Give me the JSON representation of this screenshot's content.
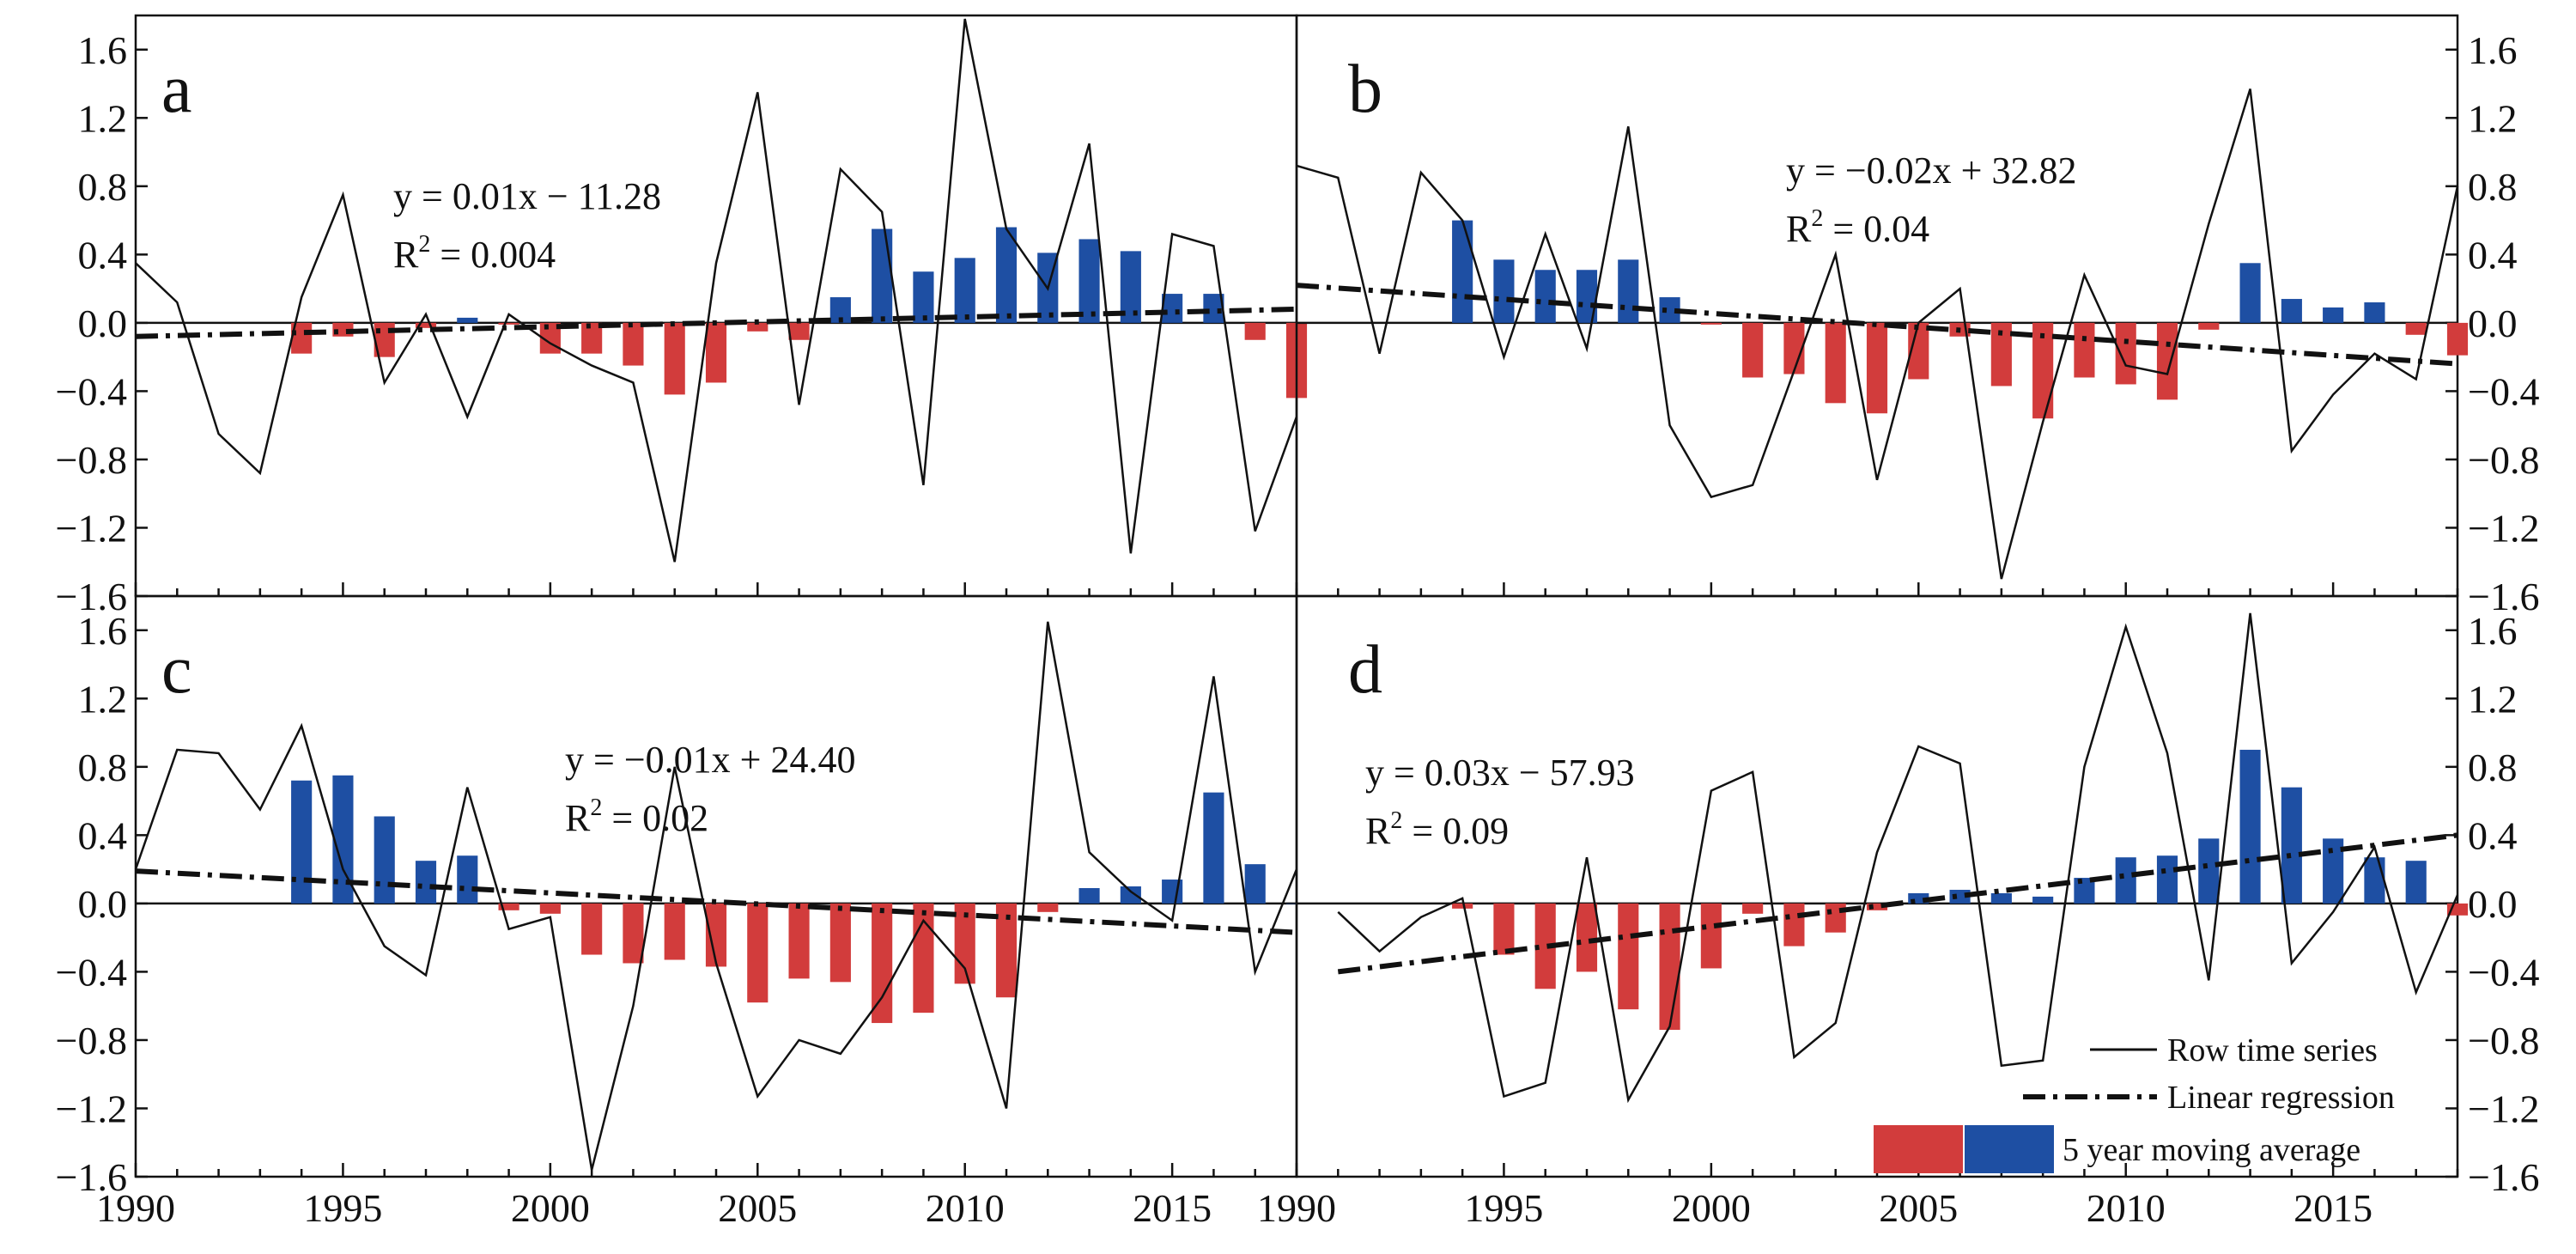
{
  "figure": {
    "legend": {
      "raw": "Row time series",
      "trend": "Linear regression",
      "moving_avg": "5 year moving average",
      "neg_color": "#d23c3c",
      "pos_color": "#1e4fa3"
    }
  },
  "chart_data": [
    {
      "type": "bar+line",
      "panel": "a",
      "title": "a",
      "xlim": [
        1990,
        2018
      ],
      "ylim": [
        -1.6,
        1.8
      ],
      "x_ticks": [
        "1990",
        "1995",
        "2000",
        "2005",
        "2010",
        "2015"
      ],
      "y_ticks": [
        "-1.6",
        "-1.2",
        "-0.8",
        "-0.4",
        "0.0",
        "0.4",
        "0.8",
        "1.2",
        "1.6"
      ],
      "equation": "y = 0.01x − 11.28",
      "r2_label": "R",
      "r2_sup": "2",
      "r2_value": " = 0.004",
      "raw_series": {
        "name": "Row time series",
        "x": [
          1990,
          1991,
          1992,
          1993,
          1994,
          1995,
          1996,
          1997,
          1998,
          1999,
          2000,
          2001,
          2002,
          2003,
          2004,
          2005,
          2006,
          2007,
          2008,
          2009,
          2010,
          2011,
          2012,
          2013,
          2014,
          2015,
          2016,
          2017,
          2018
        ],
        "values": [
          0.35,
          0.12,
          -0.65,
          -0.88,
          0.15,
          0.75,
          -0.35,
          0.05,
          -0.55,
          0.05,
          -0.12,
          -0.25,
          -0.35,
          -1.4,
          0.35,
          1.35,
          -0.48,
          0.9,
          0.65,
          -0.95,
          1.78,
          0.55,
          0.2,
          1.05,
          -1.35,
          0.52,
          0.45,
          -1.22,
          -0.55
        ]
      },
      "moving_average": {
        "name": "5 year moving average",
        "x": [
          1994,
          1995,
          1996,
          1997,
          1998,
          1999,
          2000,
          2001,
          2002,
          2003,
          2004,
          2005,
          2006,
          2007,
          2008,
          2009,
          2010,
          2011,
          2012,
          2013,
          2014,
          2015,
          2016,
          2017,
          2018
        ],
        "values": [
          -0.18,
          -0.08,
          -0.2,
          -0.03,
          0.03,
          -0.01,
          -0.18,
          -0.18,
          -0.25,
          -0.42,
          -0.35,
          -0.05,
          -0.1,
          0.15,
          0.55,
          0.3,
          0.38,
          0.56,
          0.41,
          0.49,
          0.42,
          0.17,
          0.17,
          -0.1,
          -0.44
        ]
      },
      "trend": {
        "name": "Linear regression",
        "x": [
          1990,
          2018
        ],
        "values": [
          -0.08,
          0.08
        ]
      }
    },
    {
      "type": "bar+line",
      "panel": "b",
      "title": "b",
      "xlim": [
        1990,
        2018
      ],
      "ylim": [
        -1.6,
        1.8
      ],
      "x_ticks": [
        "1990",
        "1995",
        "2000",
        "2005",
        "2010",
        "2015"
      ],
      "y_ticks": [
        "-1.6",
        "-1.2",
        "-0.8",
        "-0.4",
        "0.0",
        "0.4",
        "0.8",
        "1.2",
        "1.6"
      ],
      "equation": "y = −0.02x + 32.82",
      "r2_label": "R",
      "r2_sup": "2",
      "r2_value": " = 0.04",
      "raw_series": {
        "name": "Row time series",
        "x": [
          1990,
          1991,
          1992,
          1993,
          1994,
          1995,
          1996,
          1997,
          1998,
          1999,
          2000,
          2001,
          2002,
          2003,
          2004,
          2005,
          2006,
          2007,
          2008,
          2009,
          2010,
          2011,
          2012,
          2013,
          2014,
          2015,
          2016,
          2017,
          2018
        ],
        "values": [
          0.92,
          0.85,
          -0.18,
          0.88,
          0.6,
          -0.2,
          0.52,
          -0.15,
          1.15,
          -0.6,
          -1.02,
          -0.95,
          -0.28,
          0.4,
          -0.92,
          0.0,
          0.2,
          -1.5,
          -0.58,
          0.28,
          -0.25,
          -0.3,
          0.58,
          1.37,
          -0.75,
          -0.42,
          -0.18,
          -0.33,
          0.8
        ]
      },
      "moving_average": {
        "name": "5 year moving average",
        "x": [
          1994,
          1995,
          1996,
          1997,
          1998,
          1999,
          2000,
          2001,
          2002,
          2003,
          2004,
          2005,
          2006,
          2007,
          2008,
          2009,
          2010,
          2011,
          2012,
          2013,
          2014,
          2015,
          2016,
          2017,
          2018
        ],
        "values": [
          0.6,
          0.37,
          0.31,
          0.31,
          0.37,
          0.15,
          -0.01,
          -0.32,
          -0.3,
          -0.47,
          -0.53,
          -0.33,
          -0.08,
          -0.37,
          -0.56,
          -0.32,
          -0.36,
          -0.45,
          -0.04,
          0.35,
          0.14,
          0.09,
          0.12,
          -0.07,
          -0.19
        ]
      },
      "trend": {
        "name": "Linear regression",
        "x": [
          1990,
          2018
        ],
        "values": [
          0.22,
          -0.24
        ]
      }
    },
    {
      "type": "bar+line",
      "panel": "c",
      "title": "c",
      "xlim": [
        1990,
        2018
      ],
      "ylim": [
        -1.6,
        1.8
      ],
      "x_ticks": [
        "1990",
        "1995",
        "2000",
        "2005",
        "2010",
        "2015"
      ],
      "y_ticks": [
        "-1.6",
        "-1.2",
        "-0.8",
        "-0.4",
        "0.0",
        "0.4",
        "0.8",
        "1.2",
        "1.6"
      ],
      "equation": "y = −0.01x + 24.40",
      "r2_label": "R",
      "r2_sup": "2",
      "r2_value": " = 0.02",
      "raw_series": {
        "name": "Row time series",
        "x": [
          1990,
          1991,
          1992,
          1993,
          1994,
          1995,
          1996,
          1997,
          1998,
          1999,
          2000,
          2001,
          2002,
          2003,
          2004,
          2005,
          2006,
          2007,
          2008,
          2009,
          2010,
          2011,
          2012,
          2013,
          2014,
          2015,
          2016,
          2017,
          2018
        ],
        "values": [
          0.2,
          0.9,
          0.88,
          0.55,
          1.04,
          0.2,
          -0.25,
          -0.42,
          0.68,
          -0.15,
          -0.08,
          -1.56,
          -0.6,
          0.8,
          -0.35,
          -1.13,
          -0.8,
          -0.88,
          -0.55,
          -0.1,
          -0.38,
          -1.2,
          1.65,
          0.3,
          0.07,
          -0.1,
          1.33,
          -0.4,
          0.2
        ]
      },
      "moving_average": {
        "name": "5 year moving average",
        "x": [
          1994,
          1995,
          1996,
          1997,
          1998,
          1999,
          2000,
          2001,
          2002,
          2003,
          2004,
          2005,
          2006,
          2007,
          2008,
          2009,
          2010,
          2011,
          2012,
          2013,
          2014,
          2015,
          2016,
          2017,
          2018
        ],
        "values": [
          0.72,
          0.75,
          0.51,
          0.25,
          0.28,
          -0.04,
          -0.06,
          -0.3,
          -0.35,
          -0.33,
          -0.37,
          -0.58,
          -0.44,
          -0.46,
          -0.7,
          -0.64,
          -0.47,
          -0.55,
          -0.05,
          0.09,
          0.1,
          0.14,
          0.65,
          0.23,
          0.0
        ]
      },
      "trend": {
        "name": "Linear regression",
        "x": [
          1990,
          2018
        ],
        "values": [
          0.19,
          -0.17
        ]
      }
    },
    {
      "type": "bar+line",
      "panel": "d",
      "title": "d",
      "xlim": [
        1990,
        2018
      ],
      "ylim": [
        -1.6,
        1.8
      ],
      "x_ticks": [
        "1990",
        "1995",
        "2000",
        "2005",
        "2010",
        "2015"
      ],
      "y_ticks": [
        "-1.6",
        "-1.2",
        "-0.8",
        "-0.4",
        "0.0",
        "0.4",
        "0.8",
        "1.2",
        "1.6"
      ],
      "equation": "y = 0.03x − 57.93",
      "r2_label": "R",
      "r2_sup": "2",
      "r2_value": " = 0.09",
      "raw_series": {
        "name": "Row time series",
        "x": [
          1991,
          1992,
          1993,
          1994,
          1995,
          1996,
          1997,
          1998,
          1999,
          2000,
          2001,
          2002,
          2003,
          2004,
          2005,
          2006,
          2007,
          2008,
          2009,
          2010,
          2011,
          2012,
          2013,
          2014,
          2015,
          2016,
          2017,
          2018
        ],
        "values": [
          -0.05,
          -0.28,
          -0.08,
          0.03,
          -1.13,
          -1.05,
          0.27,
          -1.15,
          -0.72,
          0.66,
          0.77,
          -0.9,
          -0.7,
          0.3,
          0.92,
          0.82,
          -0.95,
          -0.92,
          0.8,
          1.62,
          0.88,
          -0.45,
          1.7,
          -0.35,
          -0.05,
          0.33,
          -0.52,
          0.05
        ]
      },
      "moving_average": {
        "name": "5 year moving average",
        "x": [
          1994,
          1995,
          1996,
          1997,
          1998,
          1999,
          2000,
          2001,
          2002,
          2003,
          2004,
          2005,
          2006,
          2007,
          2008,
          2009,
          2010,
          2011,
          2012,
          2013,
          2014,
          2015,
          2016,
          2017,
          2018
        ],
        "values": [
          -0.03,
          -0.3,
          -0.5,
          -0.4,
          -0.62,
          -0.74,
          -0.38,
          -0.06,
          -0.25,
          -0.17,
          -0.04,
          0.06,
          0.08,
          0.06,
          0.04,
          0.15,
          0.27,
          0.28,
          0.38,
          0.9,
          0.68,
          0.38,
          0.27,
          0.25,
          -0.07
        ]
      },
      "trend": {
        "name": "Linear regression",
        "x": [
          1991,
          2018
        ],
        "values": [
          -0.4,
          0.4
        ]
      }
    }
  ]
}
